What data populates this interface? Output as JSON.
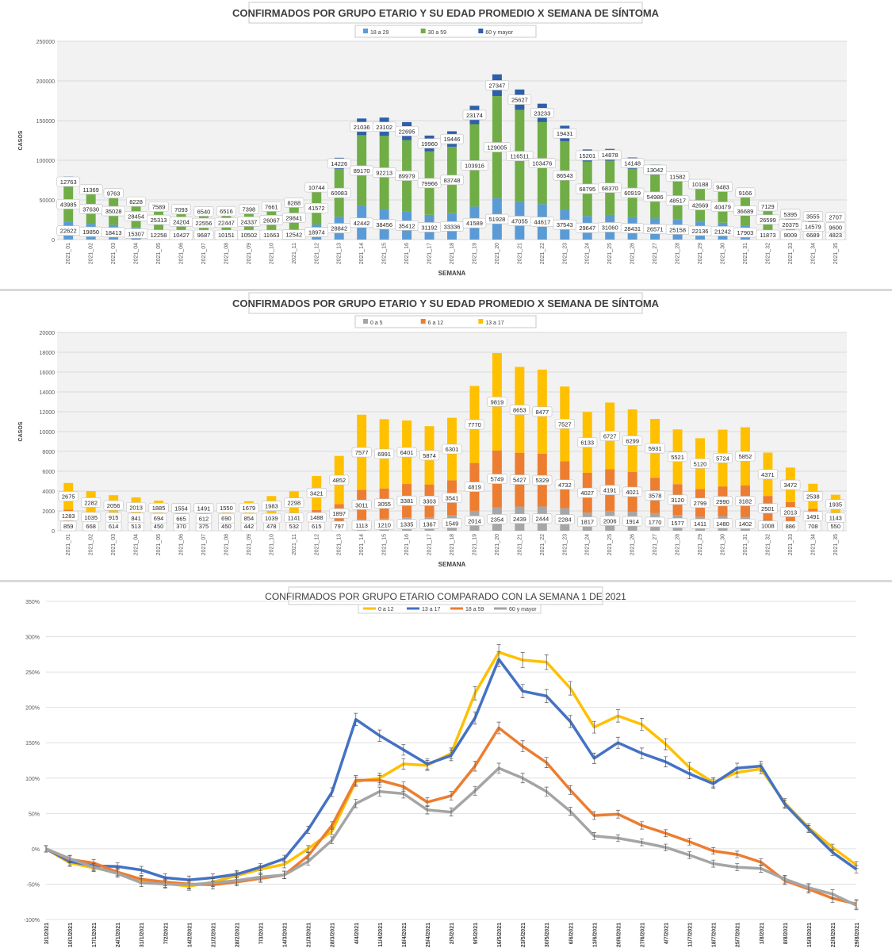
{
  "chart_data": [
    {
      "type": "bar",
      "stacked": true,
      "title": "CONFIRMADOS POR GRUPO ETARIO Y SU EDAD PROMEDIO X SEMANA DE SÍNTOMA",
      "xlabel": "SEMANA",
      "ylabel": "CASOS",
      "ylim": [
        0,
        250000
      ],
      "yticks": [
        "0",
        "50000",
        "100000",
        "150000",
        "200000",
        "250000"
      ],
      "legend_position": "top",
      "categories": [
        "2021_01",
        "2021_02",
        "2021_03",
        "2021_04",
        "2021_05",
        "2021_06",
        "2021_07",
        "2021_08",
        "2021_09",
        "2021_10",
        "2021_11",
        "2021_12",
        "2021_13",
        "2021_14",
        "2021_15",
        "2021_16",
        "2021_17",
        "2021_18",
        "2021_19",
        "2021_20",
        "2021_21",
        "2021_22",
        "2021_23",
        "2021_24",
        "2021_25",
        "2021_26",
        "2021_27",
        "2021_28",
        "2021_29",
        "2021_30",
        "2021_31",
        "2021_32",
        "2021_33",
        "2021_34",
        "2021_35"
      ],
      "series": [
        {
          "name": "18 a 29",
          "color": "#5b9bd5",
          "values": [
            22622,
            19850,
            18413,
            15307,
            12258,
            10427,
            9687,
            10151,
            10502,
            11663,
            12542,
            18974,
            28842,
            42442,
            38456,
            35412,
            31192,
            33336,
            41589,
            51928,
            47055,
            44617,
            37543,
            29647,
            31060,
            28431,
            26571,
            25158,
            22136,
            21242,
            17903,
            11873,
            9009,
            6689,
            4823
          ]
        },
        {
          "name": "30 a 59",
          "color": "#70ad47",
          "values": [
            43985,
            37630,
            35028,
            28454,
            25313,
            24204,
            22556,
            22447,
            24337,
            26067,
            29841,
            41572,
            60083,
            89170,
            92213,
            89979,
            79966,
            83748,
            103916,
            129005,
            116511,
            103476,
            86543,
            68795,
            68370,
            60919,
            54986,
            48517,
            42669,
            40479,
            36689,
            26599,
            20375,
            14579,
            9600
          ]
        },
        {
          "name": "60 y mayor",
          "color": "#2e5fa8",
          "values": [
            12763,
            11369,
            9763,
            8228,
            7589,
            7093,
            6540,
            6516,
            7398,
            7661,
            8288,
            10744,
            14226,
            21036,
            23102,
            22695,
            19960,
            19446,
            23174,
            27347,
            25627,
            23233,
            19431,
            15201,
            14878,
            14148,
            13042,
            11582,
            10188,
            9483,
            9166,
            7129,
            5395,
            3555,
            2707
          ]
        }
      ]
    },
    {
      "type": "bar",
      "stacked": true,
      "title": "CONFIRMADOS POR GRUPO ETARIO Y SU EDAD PROMEDIO X SEMANA DE SÍNTOMA",
      "xlabel": "SEMANA",
      "ylabel": "CASOS",
      "ylim": [
        0,
        20000
      ],
      "yticks": [
        "0",
        "2000",
        "4000",
        "6000",
        "8000",
        "10000",
        "12000",
        "14000",
        "16000",
        "18000",
        "20000"
      ],
      "legend_position": "top",
      "categories": [
        "2021_01",
        "2021_02",
        "2021_03",
        "2021_04",
        "2021_05",
        "2021_06",
        "2021_07",
        "2021_08",
        "2021_09",
        "2021_10",
        "2021_11",
        "2021_12",
        "2021_13",
        "2021_14",
        "2021_15",
        "2021_16",
        "2021_17",
        "2021_18",
        "2021_19",
        "2021_20",
        "2021_21",
        "2021_22",
        "2021_23",
        "2021_24",
        "2021_25",
        "2021_26",
        "2021_27",
        "2021_28",
        "2021_29",
        "2021_30",
        "2021_31",
        "2021_32",
        "2021_33",
        "2021_34",
        "2021_35"
      ],
      "series": [
        {
          "name": "0 a 5",
          "color": "#a6a6a6",
          "values": [
            859,
            668,
            614,
            513,
            450,
            370,
            375,
            450,
            442,
            478,
            532,
            615,
            797,
            1113,
            1210,
            1335,
            1367,
            1549,
            2014,
            2354,
            2439,
            2444,
            2284,
            1817,
            2006,
            1914,
            1770,
            1577,
            1411,
            1480,
            1402,
            1008,
            886,
            708,
            550
          ]
        },
        {
          "name": "6 a 12",
          "color": "#ed7d31",
          "values": [
            1283,
            1035,
            915,
            841,
            694,
            665,
            612,
            690,
            854,
            1039,
            1141,
            1488,
            1897,
            3011,
            3055,
            3381,
            3303,
            3541,
            4819,
            5749,
            5427,
            5329,
            4732,
            4027,
            4191,
            4021,
            3578,
            3120,
            2799,
            2990,
            3182,
            2501,
            2013,
            1491,
            1143
          ]
        },
        {
          "name": "13 a 17",
          "color": "#ffc000",
          "values": [
            2675,
            2282,
            2056,
            2013,
            1885,
            1554,
            1491,
            1550,
            1679,
            1983,
            2298,
            3421,
            4852,
            7577,
            6991,
            6401,
            5874,
            6301,
            7770,
            9819,
            8653,
            8477,
            7527,
            6133,
            6727,
            6299,
            5931,
            5521,
            5120,
            5724,
            5852,
            4371,
            3472,
            2538,
            1935
          ]
        }
      ]
    },
    {
      "type": "line",
      "title": "CONFIRMADOS POR GRUPO ETARIO COMPARADO CON LA SEMANA 1 DE 2021",
      "ylim": [
        -100,
        350
      ],
      "yticks": [
        "-100%",
        "-50%",
        "0%",
        "50%",
        "100%",
        "150%",
        "200%",
        "250%",
        "300%",
        "350%"
      ],
      "legend_position": "top",
      "error_bars": true,
      "x": [
        "3/1/2021",
        "10/1/2021",
        "17/1/2021",
        "24/1/2021",
        "31/1/2021",
        "7/2/2021",
        "14/2/2021",
        "21/2/2021",
        "28/2/2021",
        "7/3/2021",
        "14/3/2021",
        "21/3/2021",
        "28/3/2021",
        "4/4/2021",
        "11/4/2021",
        "18/4/2021",
        "25/4/2021",
        "2/5/2021",
        "9/5/2021",
        "16/5/2021",
        "23/5/2021",
        "30/5/2021",
        "6/6/2021",
        "13/6/2021",
        "20/6/2021",
        "27/6/2021",
        "4/7/2021",
        "11/7/2021",
        "18/7/2021",
        "25/7/2021",
        "1/8/2021",
        "8/8/2021",
        "15/8/2021",
        "22/8/2021",
        "29/8/2021"
      ],
      "series": [
        {
          "name": "0 a 12",
          "color": "#ffc000",
          "values": [
            0,
            -20,
            -27,
            -33,
            -44,
            -49,
            -53,
            -47,
            -38,
            -29,
            -22,
            0,
            25,
            95,
            100,
            120,
            118,
            135,
            220,
            278,
            267,
            264,
            227,
            172,
            188,
            176,
            148,
            115,
            94,
            108,
            113,
            65,
            30,
            2,
            -23
          ]
        },
        {
          "name": "13 a 17",
          "color": "#4472c4",
          "values": [
            0,
            -18,
            -24,
            -25,
            -30,
            -41,
            -44,
            -41,
            -36,
            -26,
            -14,
            27,
            80,
            183,
            160,
            140,
            120,
            132,
            185,
            268,
            223,
            216,
            180,
            128,
            150,
            135,
            123,
            106,
            92,
            114,
            117,
            63,
            28,
            -5,
            -29
          ]
        },
        {
          "name": "18 a 59",
          "color": "#ed7d31",
          "values": [
            0,
            -15,
            -20,
            -33,
            -43,
            -47,
            -50,
            -51,
            -47,
            -42,
            -37,
            -10,
            33,
            97,
            97,
            88,
            66,
            75,
            117,
            171,
            145,
            122,
            83,
            47,
            49,
            33,
            22,
            10,
            -3,
            -8,
            -19,
            -45,
            -57,
            -70,
            -78
          ]
        },
        {
          "name": "60 y mayor",
          "color": "#a5a5a5",
          "values": [
            0,
            -14,
            -26,
            -35,
            -48,
            -50,
            -51,
            -48,
            -45,
            -40,
            -37,
            -18,
            12,
            64,
            81,
            78,
            55,
            52,
            82,
            114,
            100,
            81,
            53,
            18,
            15,
            9,
            2,
            -9,
            -21,
            -26,
            -28,
            -43,
            -55,
            -64,
            -80
          ]
        }
      ]
    }
  ]
}
